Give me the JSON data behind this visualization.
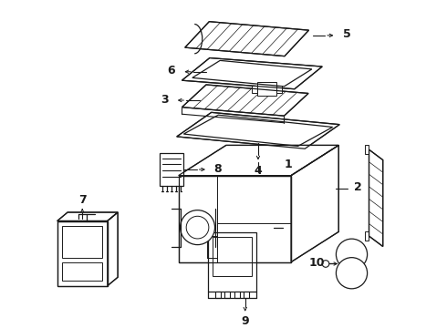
{
  "bg_color": "#ffffff",
  "line_color": "#1a1a1a",
  "fig_width": 4.9,
  "fig_height": 3.6,
  "dpi": 100,
  "font_size_label": 9
}
